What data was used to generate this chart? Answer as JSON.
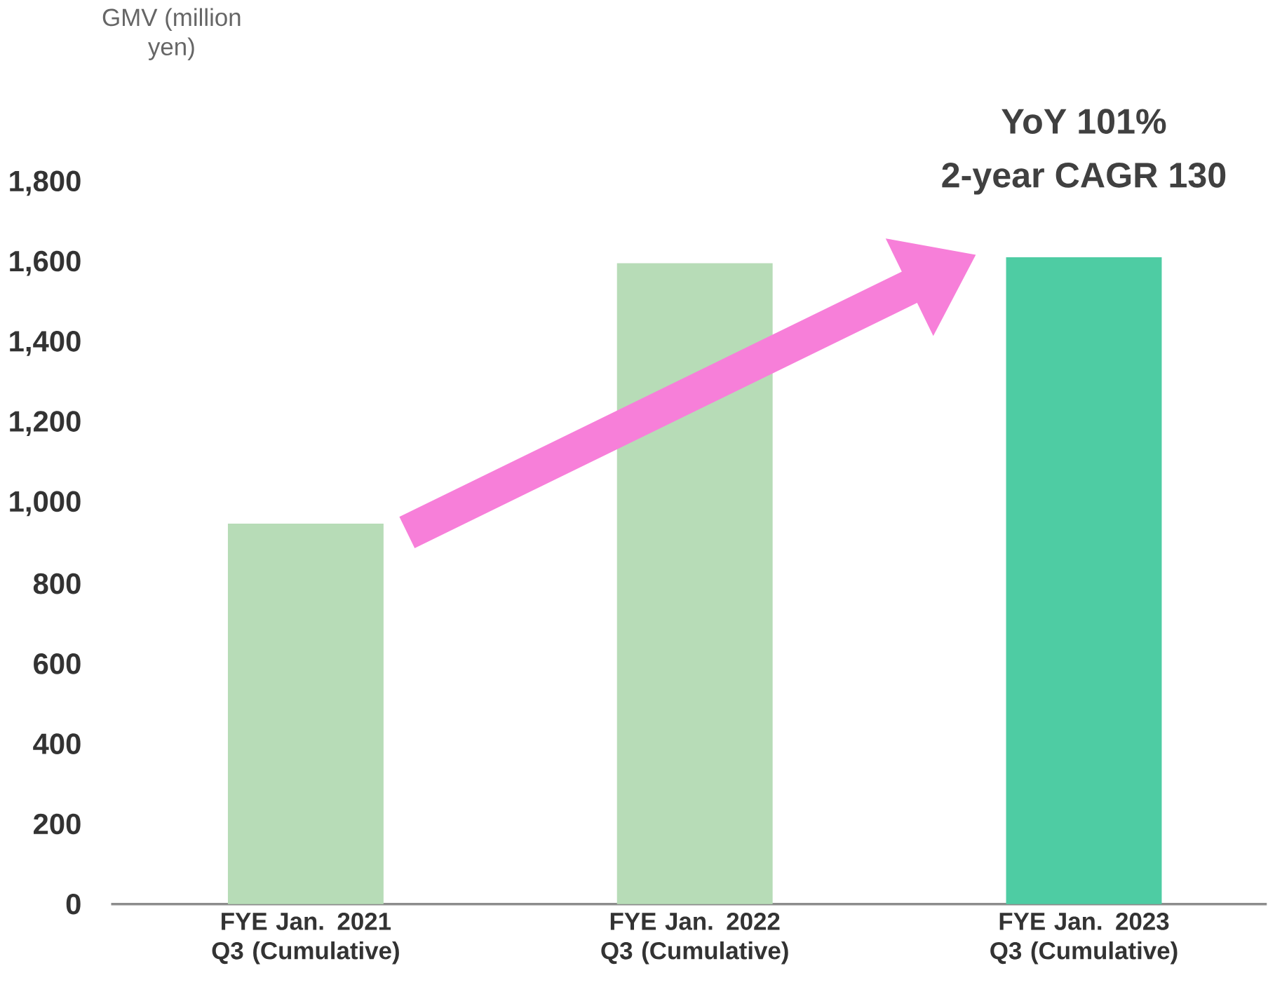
{
  "chart_data": {
    "type": "bar",
    "ylabel": "GMV (million yen)",
    "categories": [
      "FYE Jan. 2021 Q3 (Cumulative)",
      "FYE Jan. 2022 Q3 (Cumulative)",
      "FYE Jan. 2023 Q3 (Cumulative)"
    ],
    "values": [
      950,
      1600,
      1615
    ],
    "colors": [
      "#b7dcb7",
      "#b7dcb7",
      "#4ecca3"
    ],
    "ylim": [
      0,
      1800
    ],
    "yticks": [
      {
        "value": 0,
        "label": "0"
      },
      {
        "value": 200,
        "label": "200"
      },
      {
        "value": 400,
        "label": "400"
      },
      {
        "value": 600,
        "label": "600"
      },
      {
        "value": 800,
        "label": "800"
      },
      {
        "value": 1000,
        "label": "1,000"
      },
      {
        "value": 1200,
        "label": "1,200"
      },
      {
        "value": 1400,
        "label": "1,400"
      },
      {
        "value": 1600,
        "label": "1,600"
      },
      {
        "value": 1800,
        "label": "1,800"
      }
    ],
    "grid": false,
    "annotations": [
      "YoY 101%",
      "2-year CAGR 130"
    ]
  }
}
